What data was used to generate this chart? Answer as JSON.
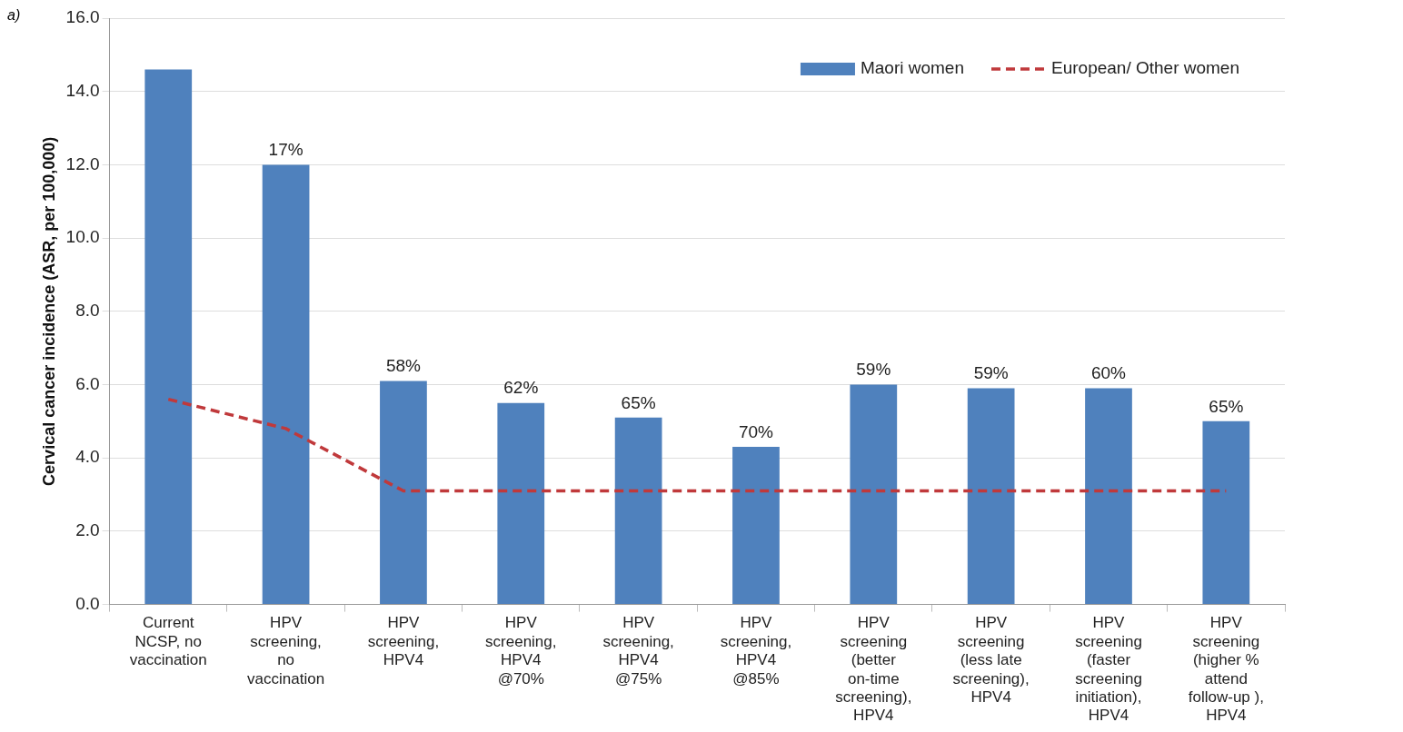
{
  "chart_data": {
    "type": "bar",
    "ylabel": "Cervical cancer incidence (ASR, per 100,000)",
    "annotations": [
      "a)",
      {
        "text": "17%",
        "x": "HPV screening, no vaccination",
        "y": 12.0
      },
      {
        "text": "58%",
        "x": "HPV screening, HPV4",
        "y": 6.1
      },
      {
        "text": "62%",
        "x": "HPV screening, HPV4 @70%",
        "y": 5.5
      },
      {
        "text": "65%",
        "x": "HPV screening, HPV4 @75%",
        "y": 5.1
      },
      {
        "text": "70%",
        "x": "HPV screening, HPV4 @85%",
        "y": 4.3
      },
      {
        "text": "59%",
        "x": "HPV screening (better on-time screening), HPV4",
        "y": 6.0
      },
      {
        "text": "59%",
        "x": "HPV screening (less late screening), HPV4",
        "y": 5.9
      },
      {
        "text": "60%",
        "x": "HPV screening (faster screening initiation), HPV4",
        "y": 5.9
      },
      {
        "text": "65%",
        "x": "HPV screening (higher % attend follow-up ), HPV4",
        "y": 5.0
      }
    ],
    "categories": [
      "Current NCSP, no vaccination",
      "HPV screening, no vaccination",
      "HPV screening, HPV4",
      "HPV screening, HPV4 @70%",
      "HPV screening, HPV4 @75%",
      "HPV screening, HPV4 @85%",
      "HPV screening (better on-time screening), HPV4",
      "HPV screening (less late screening), HPV4",
      "HPV screening (faster screening initiation), HPV4",
      "HPV screening (higher % attend follow-up ), HPV4"
    ],
    "series": [
      {
        "name": "Maori women",
        "color": "#4f81bd",
        "values": [
          14.6,
          12.0,
          6.1,
          5.5,
          5.1,
          4.3,
          6.0,
          5.9,
          5.9,
          5.0
        ]
      },
      {
        "name": "European/ Other women",
        "type": "line",
        "color": "#c0393b",
        "line_style": "dashed",
        "marker": "none",
        "values": [
          5.6,
          4.8,
          3.1,
          3.1,
          3.1,
          3.1,
          3.1,
          3.1,
          3.1,
          3.1
        ]
      }
    ],
    "ylim": [
      0,
      16
    ],
    "yticks": [
      {
        "value": 0,
        "label": "0.0"
      },
      {
        "value": 2,
        "label": "2.0"
      },
      {
        "value": 4,
        "label": "4.0"
      },
      {
        "value": 6,
        "label": "6.0"
      },
      {
        "value": 8,
        "label": "8.0"
      },
      {
        "value": 10,
        "label": "10.0"
      },
      {
        "value": 12,
        "label": "12.0"
      },
      {
        "value": 14,
        "label": "14.0"
      },
      {
        "value": 16,
        "label": "16.0"
      }
    ],
    "grid": "y",
    "legend": "top right"
  }
}
